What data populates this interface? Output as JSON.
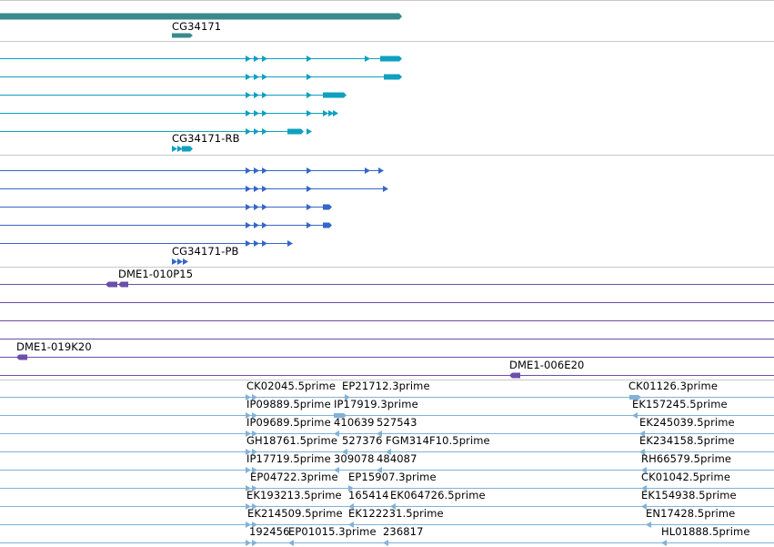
{
  "colors": {
    "gene": "#3a8a8c",
    "mrna": "#0fa0c0",
    "protein": "#3367c9",
    "clone": "#6b4fa8",
    "est": "#7fb2d9",
    "divider": "#c8c8c8"
  },
  "tracks": {
    "gene": {
      "label": "CG34171"
    },
    "mrna": {
      "label": "CG34171-RB"
    },
    "protein": {
      "label": "CG34171-PB"
    },
    "clones": [
      "DME1-010P15",
      "DME1-019K20",
      "DME1-006E20"
    ],
    "est_labels": [
      "CK02045.5prime",
      "EP21712.3prime",
      "CK01126.3prime",
      "IP09889.5prime",
      "IP17919.3prime",
      "EK157245.5prime",
      "IP09689.5prime",
      "410639",
      "527543",
      "EK245039.5prime",
      "GH18761.5prime",
      "527376",
      "FGM314F10.5prime",
      "EK234158.5prime",
      "IP17719.5prime",
      "309078",
      "484087",
      "RH66579.5prime",
      "EP04722.3prime",
      "EP15907.3prime",
      "CK01042.5prime",
      "EK193213.5prime",
      "165414",
      "EK064726.5prime",
      "EK154938.5prime",
      "EK214509.5prime",
      "EK122231.5prime",
      "EN17428.5prime",
      "192456",
      "EP01015.3prime",
      "236817",
      "HL01888.5prime"
    ]
  }
}
